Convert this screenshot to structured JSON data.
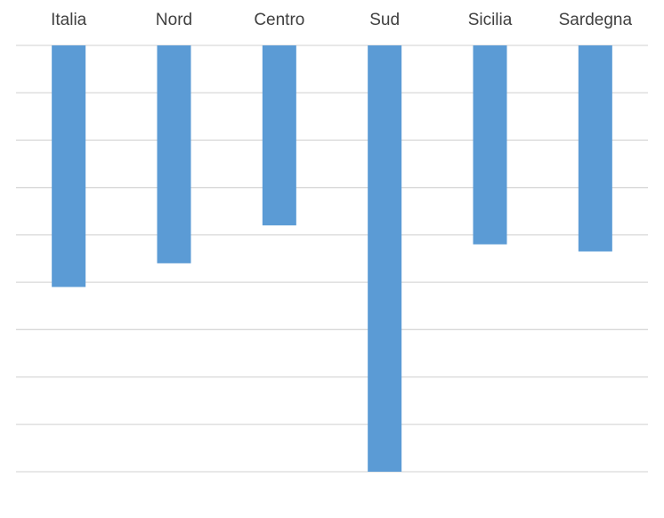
{
  "chart_data": {
    "type": "bar",
    "orientation": "vertical-negative",
    "categories": [
      "Italia",
      "Nord",
      "Centro",
      "Sud",
      "Sicilia",
      "Sardegna"
    ],
    "values": [
      -5.1,
      -4.6,
      -3.8,
      -9.0,
      -4.2,
      -4.35
    ],
    "ylim": [
      -9,
      0
    ],
    "grid": true,
    "legend": "none",
    "bar_color": "#5b9bd5",
    "title": "",
    "xlabel": "",
    "ylabel": ""
  }
}
